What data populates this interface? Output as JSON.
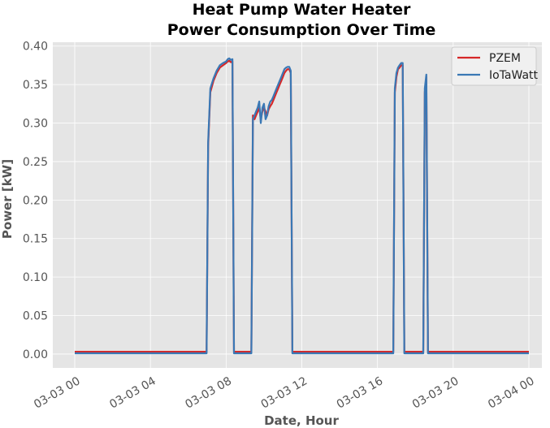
{
  "chart_data": {
    "type": "line",
    "title": [
      "Heat Pump Water Heater",
      "Power Consumption Over Time"
    ],
    "xlabel": "Date, Hour",
    "ylabel": "Power [kW]",
    "xlim": [
      "03-03 00:00",
      "03-04 00:00"
    ],
    "ylim": [
      -0.018,
      0.405
    ],
    "x_ticks": [
      "03-03 00",
      "03-03 04",
      "03-03 08",
      "03-03 12",
      "03-03 16",
      "03-03 20",
      "03-04 00"
    ],
    "y_ticks": [
      "0.00",
      "0.05",
      "0.10",
      "0.15",
      "0.20",
      "0.25",
      "0.30",
      "0.35",
      "0.40"
    ],
    "grid": true,
    "legend_position": "top-right",
    "series": [
      {
        "name": "PZEM",
        "color": "#d62728",
        "x": [
          "03-03 00:00",
          "03-03 06:50",
          "03-03 06:58",
          "03-03 07:03",
          "03-03 07:10",
          "03-03 07:20",
          "03-03 07:30",
          "03-03 07:40",
          "03-03 07:50",
          "03-03 08:00",
          "03-03 08:05",
          "03-03 08:10",
          "03-03 08:15",
          "03-03 08:20",
          "03-03 08:25",
          "03-03 09:20",
          "03-03 09:25",
          "03-03 09:30",
          "03-03 09:35",
          "03-03 09:40",
          "03-03 09:45",
          "03-03 09:50",
          "03-03 09:55",
          "03-03 10:00",
          "03-03 10:05",
          "03-03 10:10",
          "03-03 10:15",
          "03-03 10:20",
          "03-03 10:25",
          "03-03 10:30",
          "03-03 10:35",
          "03-03 10:40",
          "03-03 10:45",
          "03-03 10:50",
          "03-03 10:55",
          "03-03 11:00",
          "03-03 11:05",
          "03-03 11:10",
          "03-03 11:15",
          "03-03 11:20",
          "03-03 11:25",
          "03-03 11:30",
          "03-03 11:32",
          "03-03 11:35",
          "03-03 16:50",
          "03-03 16:55",
          "03-03 17:00",
          "03-03 17:05",
          "03-03 17:10",
          "03-03 17:15",
          "03-03 17:20",
          "03-03 17:25",
          "03-03 17:30",
          "03-03 17:35",
          "03-03 18:25",
          "03-03 18:30",
          "03-03 18:35",
          "03-03 18:40",
          "03-03 18:45",
          "03-04 00:00"
        ],
        "values": [
          0.003,
          0.003,
          0.003,
          0.27,
          0.34,
          0.355,
          0.365,
          0.372,
          0.375,
          0.378,
          0.38,
          0.381,
          0.379,
          0.38,
          0.003,
          0.003,
          0.31,
          0.305,
          0.31,
          0.315,
          0.32,
          0.305,
          0.315,
          0.32,
          0.315,
          0.31,
          0.318,
          0.322,
          0.325,
          0.33,
          0.335,
          0.34,
          0.345,
          0.35,
          0.355,
          0.36,
          0.365,
          0.368,
          0.37,
          0.37,
          0.365,
          0.003,
          0.003,
          0.003,
          0.003,
          0.34,
          0.36,
          0.37,
          0.372,
          0.375,
          0.375,
          0.003,
          0.003,
          0.003,
          0.003,
          0.34,
          0.36,
          0.003,
          0.003,
          0.003
        ]
      },
      {
        "name": "IoTaWatt",
        "color": "#3a78b5",
        "x": [
          "03-03 00:00",
          "03-03 06:50",
          "03-03 06:58",
          "03-03 07:03",
          "03-03 07:10",
          "03-03 07:20",
          "03-03 07:30",
          "03-03 07:40",
          "03-03 07:50",
          "03-03 08:00",
          "03-03 08:05",
          "03-03 08:10",
          "03-03 08:15",
          "03-03 08:20",
          "03-03 08:25",
          "03-03 09:20",
          "03-03 09:25",
          "03-03 09:30",
          "03-03 09:35",
          "03-03 09:40",
          "03-03 09:45",
          "03-03 09:50",
          "03-03 09:55",
          "03-03 10:00",
          "03-03 10:05",
          "03-03 10:10",
          "03-03 10:15",
          "03-03 10:20",
          "03-03 10:25",
          "03-03 10:30",
          "03-03 10:35",
          "03-03 10:40",
          "03-03 10:45",
          "03-03 10:50",
          "03-03 10:55",
          "03-03 11:00",
          "03-03 11:05",
          "03-03 11:10",
          "03-03 11:15",
          "03-03 11:20",
          "03-03 11:25",
          "03-03 11:30",
          "03-03 11:32",
          "03-03 11:35",
          "03-03 16:50",
          "03-03 16:55",
          "03-03 17:00",
          "03-03 17:05",
          "03-03 17:10",
          "03-03 17:15",
          "03-03 17:20",
          "03-03 17:25",
          "03-03 17:30",
          "03-03 17:35",
          "03-03 18:25",
          "03-03 18:30",
          "03-03 18:35",
          "03-03 18:40",
          "03-03 18:45",
          "03-04 00:00"
        ],
        "values": [
          0.001,
          0.001,
          0.001,
          0.275,
          0.345,
          0.358,
          0.368,
          0.375,
          0.378,
          0.38,
          0.383,
          0.384,
          0.382,
          0.383,
          0.001,
          0.001,
          0.305,
          0.31,
          0.315,
          0.32,
          0.328,
          0.3,
          0.32,
          0.325,
          0.305,
          0.31,
          0.322,
          0.328,
          0.33,
          0.335,
          0.34,
          0.345,
          0.35,
          0.355,
          0.36,
          0.365,
          0.37,
          0.372,
          0.373,
          0.373,
          0.368,
          0.001,
          0.001,
          0.001,
          0.001,
          0.345,
          0.365,
          0.372,
          0.375,
          0.378,
          0.378,
          0.001,
          0.001,
          0.001,
          0.001,
          0.345,
          0.363,
          0.001,
          0.001,
          0.001
        ]
      }
    ]
  }
}
